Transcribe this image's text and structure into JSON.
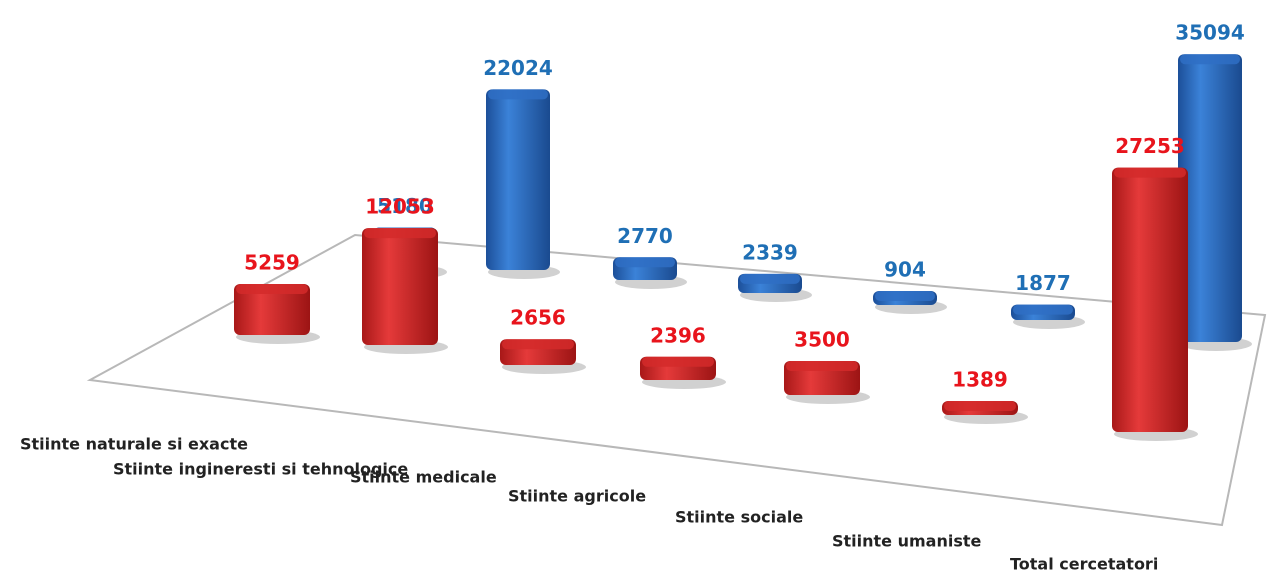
{
  "chart_data": {
    "type": "bar",
    "categories": [
      "Stiinte naturale si exacte",
      "Stiinte ingineresti si tehnologice",
      "Stiinte medicale",
      "Stiinte agricole",
      "Stiinte sociale",
      "Stiinte umaniste",
      "Total cercetatori"
    ],
    "series": [
      {
        "color": "#d42a2a",
        "values": [
          5259,
          12053,
          2656,
          2396,
          3500,
          1389,
          27253
        ]
      },
      {
        "color": "#2f6fc4",
        "values": [
          5180,
          22024,
          2770,
          2339,
          904,
          1877,
          35094
        ]
      }
    ]
  }
}
